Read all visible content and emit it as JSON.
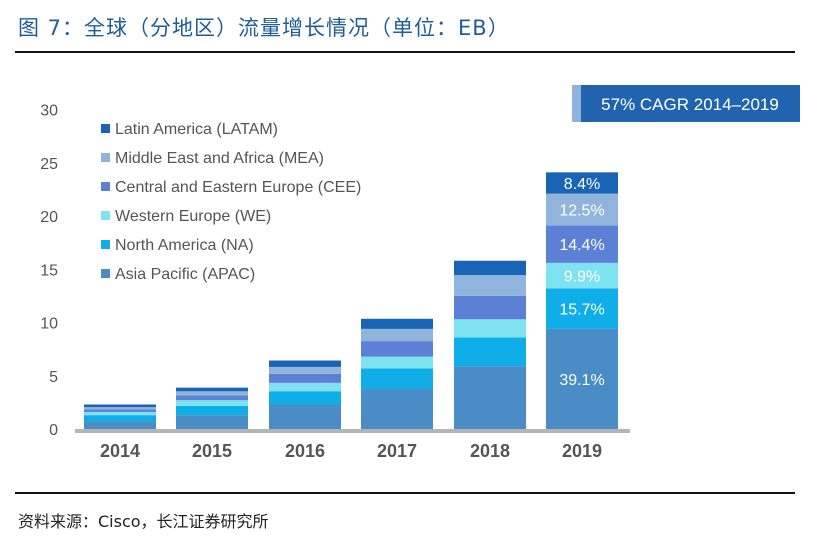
{
  "title": "图 7：全球（分地区）流量增长情况（单位：EB）",
  "source": "资料来源：Cisco，长江证券研究所",
  "chart_data": {
    "type": "bar",
    "stacked": true,
    "categories": [
      "2014",
      "2015",
      "2016",
      "2017",
      "2018",
      "2019"
    ],
    "ylim": [
      0,
      30
    ],
    "yticks": [
      0,
      5,
      10,
      15,
      20,
      25,
      30
    ],
    "grid": false,
    "legend_position": "top-left",
    "series": [
      {
        "name": "Asia Pacific (APAC)",
        "color": "#4a8dc6",
        "values": [
          0.7,
          1.3,
          2.3,
          3.75,
          5.9,
          9.4
        ]
      },
      {
        "name": "North America (NA)",
        "color": "#10aee8",
        "values": [
          0.6,
          0.87,
          1.25,
          1.95,
          2.7,
          3.8
        ]
      },
      {
        "name": "Western Europe (WE)",
        "color": "#7fe2f0",
        "values": [
          0.3,
          0.53,
          0.78,
          1.1,
          1.7,
          2.4
        ]
      },
      {
        "name": "Central and Eastern Europe (CEE)",
        "color": "#5b80d6",
        "values": [
          0.25,
          0.47,
          0.84,
          1.45,
          2.2,
          3.5
        ]
      },
      {
        "name": "Middle East and Africa (MEA)",
        "color": "#90b4dc",
        "values": [
          0.2,
          0.37,
          0.66,
          1.15,
          1.95,
          3.0
        ]
      },
      {
        "name": "Latin America (LATAM)",
        "color": "#1a64b6",
        "values": [
          0.25,
          0.34,
          0.6,
          0.95,
          1.35,
          2.0
        ]
      }
    ],
    "data_labels_2019": [
      "39.1%",
      "15.7%",
      "9.9%",
      "14.4%",
      "12.5%",
      "8.4%"
    ],
    "annotation": "57% CAGR 2014–2019",
    "annotation_color": "#2064b0"
  }
}
